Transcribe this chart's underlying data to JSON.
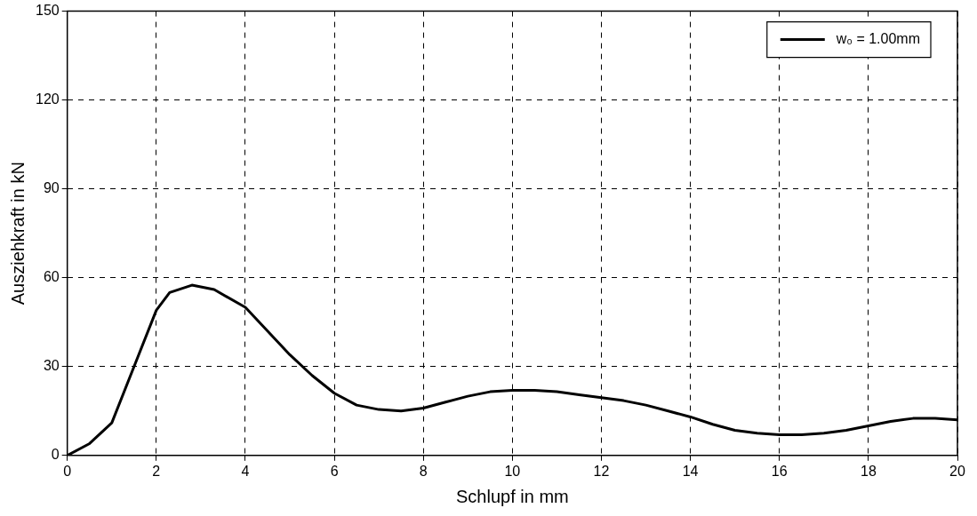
{
  "chart_data": {
    "type": "line",
    "xlabel": "Schlupf in mm",
    "ylabel": "Ausziehkraft in kN",
    "xlim": [
      0,
      20
    ],
    "xticks": [
      0,
      2,
      4,
      6,
      8,
      10,
      12,
      14,
      16,
      18,
      20
    ],
    "ylim": [
      0,
      150
    ],
    "yticks": [
      0,
      30,
      60,
      90,
      120,
      150
    ],
    "grid": true,
    "legend": "top right",
    "marker": "none",
    "line_style": "solid",
    "series": [
      {
        "name": "w₀ = 1.00mm",
        "color": "#000000",
        "x": [
          0,
          0.5,
          1,
          1.5,
          2,
          2.3,
          2.8,
          3.3,
          4,
          4.5,
          5,
          5.5,
          6,
          6.5,
          7,
          7.5,
          8,
          8.5,
          9,
          9.5,
          10,
          10.5,
          11,
          11.5,
          12,
          12.5,
          13,
          13.5,
          14,
          14.5,
          15,
          15.5,
          16,
          16.5,
          17,
          17.5,
          18,
          18.5,
          19,
          19.5,
          20
        ],
        "values": [
          0,
          4,
          11,
          30,
          49,
          55,
          57.5,
          56,
          50,
          42,
          34,
          27,
          21,
          17,
          15.5,
          15,
          16,
          18,
          20,
          21.5,
          22,
          22,
          21.5,
          20.5,
          19.5,
          18.5,
          17,
          15,
          13,
          10.5,
          8.5,
          7.5,
          7,
          7,
          7.5,
          8.5,
          10,
          11.5,
          12.5,
          12.5,
          12
        ]
      }
    ]
  }
}
